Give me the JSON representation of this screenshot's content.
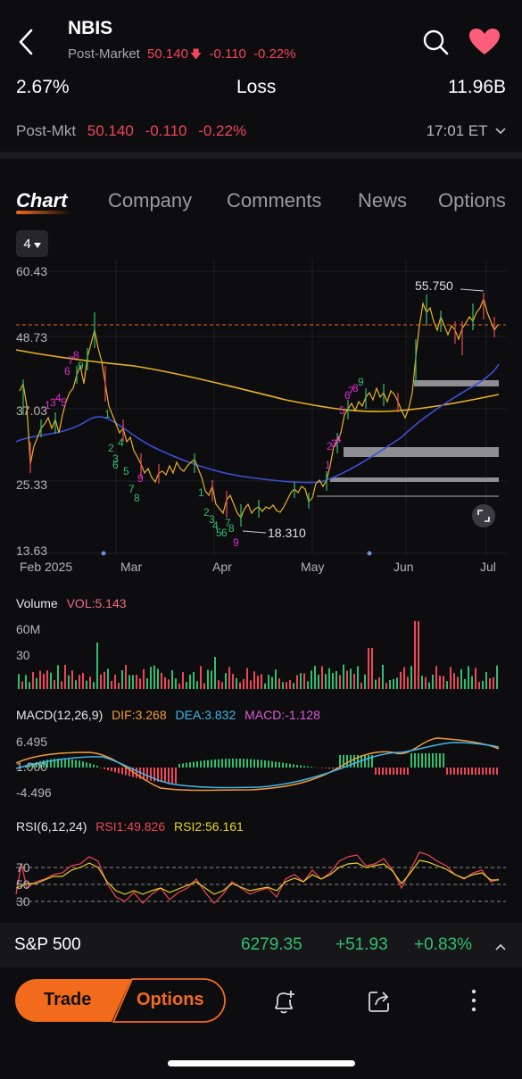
{
  "header": {
    "ticker": "NBIS",
    "post_market_label": "Post-Market",
    "post_market_price": "50.140",
    "post_market_change": "-0.110",
    "post_market_pct": "-0.22%",
    "stat_left": "2.67%",
    "stat_mid": "Loss",
    "stat_right": "11.96B",
    "post_mkt_label": "Post-Mkt",
    "post_mkt_price": "50.140",
    "post_mkt_change": "-0.110",
    "post_mkt_pct": "-0.22%",
    "time": "17:01 ET"
  },
  "tabs": [
    "Chart",
    "Company",
    "Comments",
    "News",
    "Options"
  ],
  "period_selector": "4",
  "price_chart": {
    "y_ticks": [
      "60.43",
      "48.73",
      "37.03",
      "25.33",
      "13.63"
    ],
    "x_ticks": [
      "Feb 2025",
      "Mar",
      "Apr",
      "May",
      "Jun",
      "Jul"
    ],
    "high_label": "55.750",
    "low_label": "18.310",
    "td_sequence_labels": [
      "1",
      "3",
      "4",
      "5",
      "6",
      "7",
      "8",
      "9",
      "1",
      "2",
      "3",
      "4",
      "5",
      "6",
      "7",
      "8",
      "9",
      "1",
      "2",
      "3",
      "4",
      "5",
      "6",
      "7",
      "8",
      "9",
      "1",
      "2",
      "3",
      "4",
      "5",
      "6",
      "7",
      "8",
      "9"
    ]
  },
  "volume": {
    "label": "Volume",
    "value_label": "VOL:5.143",
    "y_ticks": [
      "60M",
      "30"
    ]
  },
  "macd": {
    "label": "MACD(12,26,9)",
    "dif": "DIF:3.268",
    "dea": "DEA:3.832",
    "macd": "MACD:-1.128",
    "y_ticks": [
      "6.495",
      "1.000",
      "-4.496"
    ]
  },
  "rsi": {
    "label": "RSI(6,12,24)",
    "rsi1": "RSI1:49.826",
    "rsi2": "RSI2:56.161",
    "y_ticks": [
      "70",
      "50",
      "30"
    ]
  },
  "index_bar": {
    "name": "S&P 500",
    "value": "6279.35",
    "change": "+51.93",
    "pct": "+0.83%"
  },
  "bottom": {
    "trade": "Trade",
    "options": "Options"
  },
  "colors": {
    "accent": "#f26b1d",
    "up": "#2fbf71",
    "down": "#f0455a",
    "ma_yellow": "#e8b321",
    "ma_blue": "#3b4fd8"
  }
}
